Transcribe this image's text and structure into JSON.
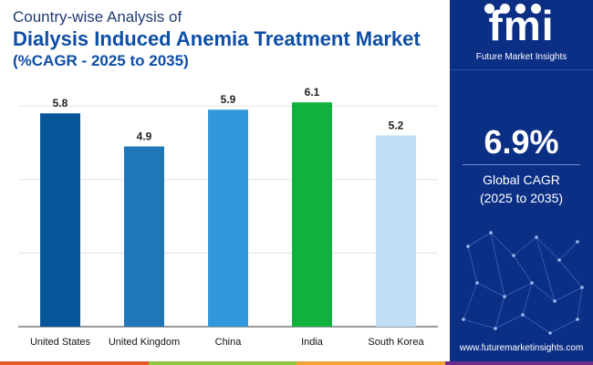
{
  "title": {
    "line1": "Country-wise Analysis of",
    "line2": "Dialysis Induced Anemia Treatment Market",
    "line3": "(%CAGR - 2025 to 2035)"
  },
  "chart_data": {
    "type": "bar",
    "title": "Country-wise Analysis of Dialysis Induced Anemia Treatment Market (%CAGR - 2025 to 2035)",
    "categories": [
      "United States",
      "United Kingdom",
      "China",
      "India",
      "South Korea"
    ],
    "values": [
      5.8,
      4.9,
      5.9,
      6.1,
      5.2
    ],
    "value_labels": [
      "5.8",
      "4.9",
      "5.9",
      "6.1",
      "5.2"
    ],
    "colors": [
      "#08569a",
      "#1f77b8",
      "#3397dc",
      "#12b03e",
      "#c2def5"
    ],
    "ylim": [
      0,
      6.5
    ],
    "xlabel": "",
    "ylabel": "",
    "grid": true
  },
  "side": {
    "logo": "fmi",
    "logo_subtitle": "Future Market Insights",
    "cagr_value": "6.9%",
    "cagr_label_line1": "Global CAGR",
    "cagr_label_line2": "(2025 to 2035)",
    "website": "www.futuremarketinsights.com"
  },
  "colors": {
    "panel": "#0c2f86",
    "footer": [
      "#e15a2a",
      "#8cc63f",
      "#f0a33a",
      "#6b2d8c"
    ]
  }
}
